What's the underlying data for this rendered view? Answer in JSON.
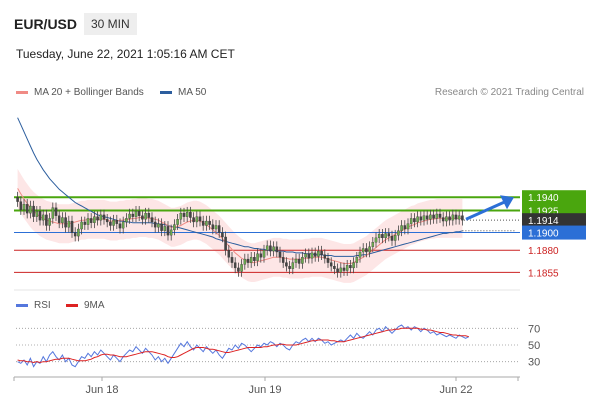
{
  "header": {
    "pair": "EUR/USD",
    "timeframe": "30 MIN",
    "datetime": "Tuesday, June 22, 2021 1:05:16 AM CET"
  },
  "legend": {
    "ma20": {
      "label": "MA 20 + Bollinger Bands",
      "color": "#f08b85"
    },
    "ma50": {
      "label": "MA 50",
      "color": "#2c5e9e"
    },
    "credit": "Research © 2021 Trading Central"
  },
  "rsi_legend": {
    "rsi": {
      "label": "RSI",
      "color": "#5577dd"
    },
    "ma9": {
      "label": "9MA",
      "color": "#dd2222"
    }
  },
  "colors": {
    "resistance": "#4aa60e",
    "pivot": "#2c6fd6",
    "support": "#cc2222",
    "current": "#333333",
    "band": "#fde0e0"
  },
  "chart_data": [
    {
      "type": "candlestick",
      "x_labels": [
        "Jun 18",
        "Jun 19",
        "Jun 22"
      ],
      "ylim": [
        1.1835,
        1.205
      ],
      "levels": [
        {
          "value": 1.194,
          "label": "1.1940",
          "kind": "resistance"
        },
        {
          "value": 1.1925,
          "label": "1.1925",
          "kind": "resistance"
        },
        {
          "value": 1.1914,
          "label": "1.1914",
          "kind": "current"
        },
        {
          "value": 1.19,
          "label": "1.1900",
          "kind": "pivot"
        },
        {
          "value": 1.188,
          "label": "1.1880",
          "kind": "support"
        },
        {
          "value": 1.1855,
          "label": "1.1855",
          "kind": "support"
        }
      ],
      "close": [
        1.1935,
        1.1926,
        1.1932,
        1.1922,
        1.193,
        1.1918,
        1.1924,
        1.1914,
        1.192,
        1.1908,
        1.1916,
        1.1928,
        1.1919,
        1.1911,
        1.1917,
        1.1906,
        1.1913,
        1.19,
        1.1896,
        1.1904,
        1.1912,
        1.1909,
        1.1916,
        1.1911,
        1.1918,
        1.1914,
        1.192,
        1.1915,
        1.1912,
        1.1908,
        1.1914,
        1.191,
        1.1905,
        1.1912,
        1.1916,
        1.1921,
        1.1918,
        1.1924,
        1.1919,
        1.1915,
        1.1922,
        1.1917,
        1.1912,
        1.1906,
        1.191,
        1.1902,
        1.1907,
        1.1897,
        1.1903,
        1.1909,
        1.1915,
        1.1922,
        1.1918,
        1.1923,
        1.1917,
        1.1912,
        1.1918,
        1.1913,
        1.1908,
        1.1913,
        1.1909,
        1.1904,
        1.1908,
        1.19,
        1.1895,
        1.188,
        1.1872,
        1.1866,
        1.186,
        1.1856,
        1.1864,
        1.187,
        1.1866,
        1.1872,
        1.1868,
        1.1876,
        1.1872,
        1.188,
        1.1885,
        1.1879,
        1.1884,
        1.1878,
        1.1872,
        1.1866,
        1.1862,
        1.1859,
        1.1866,
        1.187,
        1.1865,
        1.1872,
        1.1876,
        1.1871,
        1.1877,
        1.1873,
        1.1879,
        1.1875,
        1.1871,
        1.1866,
        1.1862,
        1.1859,
        1.1855,
        1.186,
        1.1857,
        1.1863,
        1.186,
        1.1866,
        1.1872,
        1.1878,
        1.1882,
        1.1878,
        1.1884,
        1.1889,
        1.1894,
        1.1898,
        1.1894,
        1.1899,
        1.1896,
        1.1891,
        1.1897,
        1.1902,
        1.1908,
        1.1904,
        1.191,
        1.1916,
        1.1912,
        1.1918,
        1.1914,
        1.1919,
        1.1915,
        1.192,
        1.1916,
        1.1921,
        1.1917,
        1.1913,
        1.1918,
        1.1914,
        1.192,
        1.1915,
        1.1919,
        1.1914
      ],
      "ma20": [
        1.195,
        1.1944,
        1.1938,
        1.1933,
        1.1928,
        1.1924,
        1.1921,
        1.1918,
        1.1916,
        1.1914,
        1.1913,
        1.1912,
        1.1911,
        1.191,
        1.191,
        1.191,
        1.191,
        1.1911,
        1.1912,
        1.1913,
        1.1914,
        1.1914,
        1.1915,
        1.1915,
        1.1915,
        1.1915,
        1.1915,
        1.1915,
        1.1914,
        1.1913,
        1.1913,
        1.1913,
        1.1914,
        1.1914,
        1.1915,
        1.1915,
        1.1916,
        1.1916,
        1.1917,
        1.1917,
        1.1917,
        1.1916,
        1.1916,
        1.1915,
        1.1914,
        1.1912,
        1.191,
        1.1908,
        1.1906,
        1.1906,
        1.1907,
        1.1908,
        1.191,
        1.1912,
        1.1913,
        1.1914,
        1.1914,
        1.1913,
        1.1911,
        1.1909,
        1.1906,
        1.1903,
        1.19,
        1.1897,
        1.1893,
        1.1889,
        1.1885,
        1.1881,
        1.1877,
        1.1874,
        1.1871,
        1.1869,
        1.1867,
        1.1866,
        1.1866,
        1.1867,
        1.1868,
        1.1869,
        1.187,
        1.1871,
        1.1872,
        1.1872,
        1.1872,
        1.1871,
        1.1871,
        1.187,
        1.187,
        1.187,
        1.187,
        1.187,
        1.1871,
        1.1871,
        1.1872,
        1.1872,
        1.1872,
        1.1872,
        1.1871,
        1.187,
        1.1869,
        1.1868,
        1.1867,
        1.1866,
        1.1865,
        1.1865,
        1.1865,
        1.1866,
        1.1868,
        1.187,
        1.1872,
        1.1874,
        1.1877,
        1.188,
        1.1883,
        1.1886,
        1.1889,
        1.1892,
        1.1894,
        1.1896,
        1.1898,
        1.19,
        1.1902,
        1.1904,
        1.1906,
        1.1908,
        1.1909,
        1.1911,
        1.1912,
        1.1913,
        1.1914,
        1.1915,
        1.1915,
        1.1916,
        1.1916,
        1.1916,
        1.1916,
        1.1916,
        1.1916,
        1.1916,
        1.1916,
        1.1916
      ],
      "ma50": [
        1.203,
        1.2022,
        1.2014,
        1.2006,
        1.1998,
        1.199,
        1.1983,
        1.1977,
        1.1971,
        1.1966,
        1.1961,
        1.1957,
        1.1953,
        1.1949,
        1.1946,
        1.1943,
        1.194,
        1.1937,
        1.1934,
        1.1932,
        1.193,
        1.1928,
        1.1926,
        1.1924,
        1.1922,
        1.192,
        1.1919,
        1.1918,
        1.1917,
        1.1916,
        1.1915,
        1.1914,
        1.1913,
        1.1913,
        1.1912,
        1.1912,
        1.1911,
        1.1911,
        1.1911,
        1.1911,
        1.1911,
        1.1911,
        1.1911,
        1.191,
        1.191,
        1.1909,
        1.1909,
        1.1908,
        1.1907,
        1.1906,
        1.1906,
        1.1905,
        1.1904,
        1.1903,
        1.1902,
        1.1901,
        1.19,
        1.1899,
        1.1898,
        1.1897,
        1.1896,
        1.1895,
        1.1893,
        1.1892,
        1.1891,
        1.189,
        1.1889,
        1.1888,
        1.1887,
        1.1886,
        1.1885,
        1.1884,
        1.1884,
        1.1883,
        1.1882,
        1.1882,
        1.1881,
        1.1881,
        1.188,
        1.188,
        1.188,
        1.1879,
        1.1879,
        1.1879,
        1.1878,
        1.1878,
        1.1878,
        1.1877,
        1.1877,
        1.1877,
        1.1876,
        1.1876,
        1.1876,
        1.1875,
        1.1875,
        1.1875,
        1.1874,
        1.1874,
        1.1874,
        1.1873,
        1.1873,
        1.1873,
        1.1873,
        1.1873,
        1.1873,
        1.1873,
        1.1874,
        1.1874,
        1.1875,
        1.1875,
        1.1876,
        1.1877,
        1.1878,
        1.1879,
        1.188,
        1.1881,
        1.1882,
        1.1883,
        1.1884,
        1.1885,
        1.1886,
        1.1887,
        1.1888,
        1.1889,
        1.189,
        1.1891,
        1.1892,
        1.1893,
        1.1894,
        1.1895,
        1.1896,
        1.1897,
        1.1898,
        1.1899,
        1.1899,
        1.19,
        1.19,
        1.1901,
        1.1901,
        1.1902
      ],
      "forecast_arrow": {
        "from": 1.1915,
        "to": 1.194
      }
    },
    {
      "type": "line",
      "name": "RSI",
      "ylim": [
        20,
        80
      ],
      "ticks": [
        70,
        50,
        30
      ],
      "rsi": [
        30,
        28,
        32,
        26,
        34,
        24,
        30,
        28,
        36,
        30,
        38,
        42,
        36,
        32,
        38,
        30,
        34,
        26,
        24,
        30,
        36,
        34,
        40,
        36,
        42,
        38,
        44,
        40,
        36,
        32,
        38,
        34,
        30,
        36,
        40,
        44,
        42,
        48,
        44,
        40,
        46,
        42,
        38,
        32,
        36,
        30,
        34,
        28,
        34,
        40,
        46,
        52,
        48,
        54,
        48,
        44,
        50,
        46,
        42,
        48,
        44,
        40,
        44,
        38,
        34,
        40,
        46,
        44,
        50,
        46,
        52,
        50,
        46,
        42,
        46,
        50,
        48,
        52,
        50,
        54,
        52,
        48,
        52,
        50,
        46,
        44,
        50,
        54,
        52,
        56,
        58,
        54,
        58,
        54,
        58,
        56,
        52,
        54,
        50,
        52,
        54,
        56,
        54,
        58,
        62,
        58,
        64,
        60,
        58,
        62,
        66,
        62,
        68,
        70,
        66,
        72,
        68,
        64,
        68,
        72,
        74,
        70,
        72,
        68,
        72,
        70,
        66,
        70,
        68,
        64,
        66,
        62,
        64,
        62,
        60,
        62,
        60,
        58,
        62,
        60,
        58,
        60
      ],
      "ma9": [
        32,
        31,
        31,
        30,
        30,
        29,
        30,
        29,
        30,
        30,
        31,
        32,
        33,
        33,
        34,
        34,
        34,
        33,
        32,
        31,
        31,
        31,
        32,
        33,
        35,
        36,
        38,
        39,
        39,
        38,
        38,
        37,
        36,
        36,
        36,
        37,
        38,
        39,
        40,
        41,
        42,
        42,
        42,
        41,
        40,
        39,
        38,
        36,
        35,
        35,
        36,
        38,
        40,
        42,
        44,
        46,
        47,
        47,
        47,
        46,
        45,
        45,
        44,
        43,
        42,
        41,
        41,
        42,
        43,
        44,
        45,
        46,
        47,
        47,
        47,
        47,
        47,
        48,
        48,
        49,
        50,
        50,
        51,
        51,
        50,
        50,
        50,
        50,
        51,
        52,
        53,
        54,
        55,
        55,
        56,
        56,
        56,
        56,
        55,
        55,
        54,
        54,
        54,
        55,
        56,
        57,
        58,
        59,
        60,
        61,
        62,
        63,
        64,
        65,
        66,
        67,
        68,
        68,
        69,
        69,
        70,
        70,
        70,
        70,
        70,
        70,
        69,
        69,
        68,
        68,
        67,
        66,
        65,
        65,
        64,
        63,
        62,
        62,
        61,
        61,
        61,
        60
      ]
    }
  ]
}
